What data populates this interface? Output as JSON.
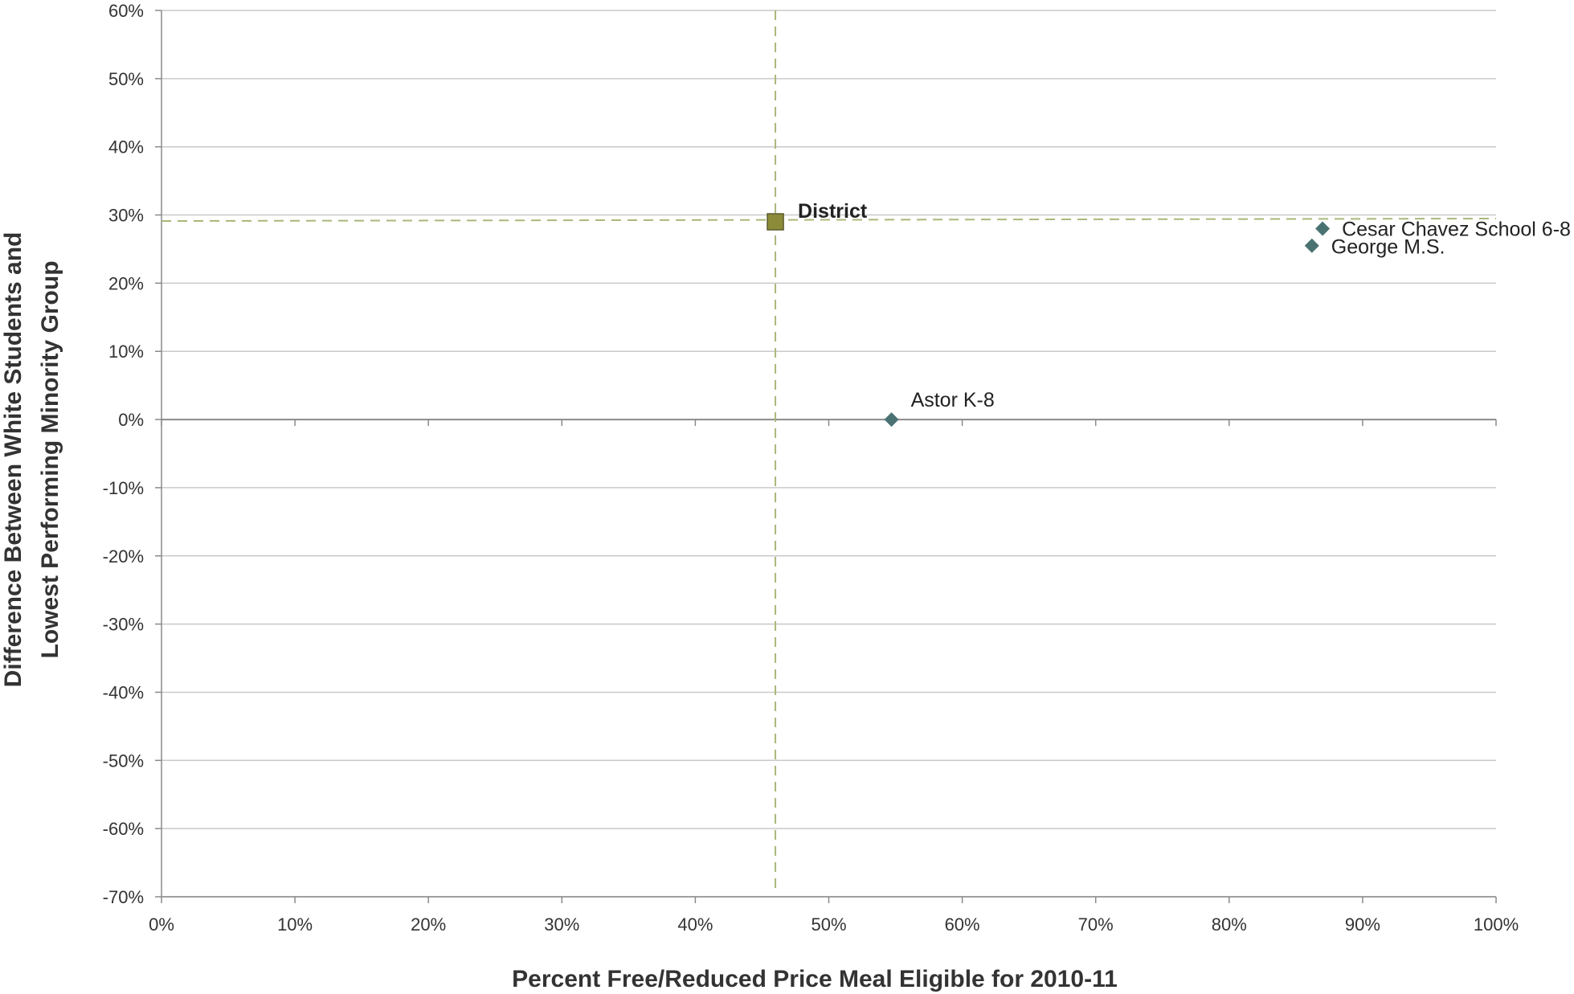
{
  "chart_data": {
    "type": "scatter",
    "xlabel": "Percent Free/Reduced Price Meal Eligible for 2010-11",
    "ylabel_line1": "Difference Between White Students and",
    "ylabel_line2": "Lowest Performing Minority Group",
    "xlim": [
      0,
      100
    ],
    "ylim": [
      -70,
      60
    ],
    "x_ticks": [
      "0%",
      "10%",
      "20%",
      "30%",
      "40%",
      "50%",
      "60%",
      "70%",
      "80%",
      "90%",
      "100%"
    ],
    "y_ticks": [
      "60%",
      "50%",
      "40%",
      "30%",
      "20%",
      "10%",
      "0%",
      "-10%",
      "-20%",
      "-30%",
      "-40%",
      "-50%",
      "-60%",
      "-70%"
    ],
    "grid": true,
    "points": [
      {
        "label": "District",
        "x": 46,
        "y": 29,
        "marker": "square",
        "color": "#8b8b3a",
        "bold": true
      },
      {
        "label": "Cesar Chavez School 6-8",
        "x": 87,
        "y": 28,
        "marker": "diamond",
        "color": "#4a7272",
        "bold": false
      },
      {
        "label": "George M.S.",
        "x": 86.2,
        "y": 25.5,
        "marker": "diamond",
        "color": "#4a7272",
        "bold": false
      },
      {
        "label": "Astor K-8",
        "x": 54.7,
        "y": 0,
        "marker": "diamond",
        "color": "#4a7272",
        "bold": false
      }
    ],
    "reference_lines": {
      "x": 46,
      "y": 29,
      "color": "#a8b878"
    }
  }
}
